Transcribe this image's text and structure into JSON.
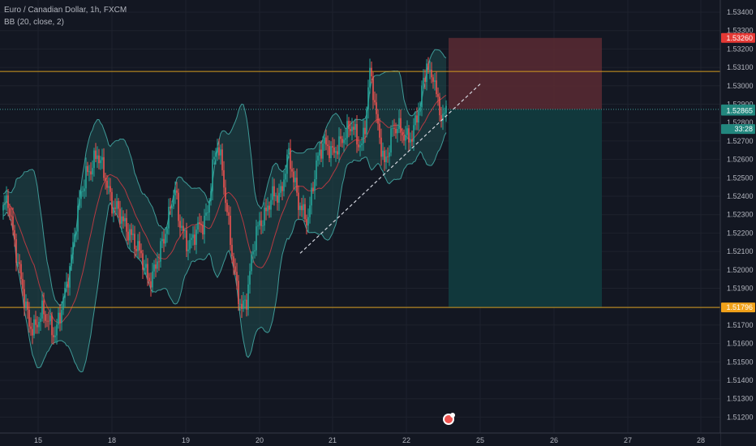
{
  "header": {
    "symbol_line": "Euro / Canadian Dollar, 1h, FXCM",
    "indicator_line": "BB (20, close, 2)"
  },
  "colors": {
    "background": "#131722",
    "grid": "#1e222d",
    "up": "#26a69a",
    "down": "#ef5350",
    "band": "#3e9a97",
    "band_fill": "#1f4c4e",
    "basis": "#b53a42",
    "level_line": "#d49b1f",
    "stop_zone": "#5a2a33",
    "target_zone": "#113a3e",
    "entry_line": "#3e9a97",
    "tag_red": "#e53935",
    "tag_teal": "#22877e",
    "tag_orange": "#f0a11a"
  },
  "chart_data": {
    "type": "candlestick",
    "title": "Euro / Canadian Dollar, 1h, FXCM",
    "indicator": "BB (20, close, 2)",
    "x_ticks": [
      "15",
      "18",
      "19",
      "20",
      "21",
      "22",
      "25",
      "26",
      "27",
      "28"
    ],
    "y_ticks": [
      "1.53400",
      "1.53300",
      "1.53200",
      "1.53100",
      "1.53000",
      "1.52900",
      "1.52800",
      "1.52700",
      "1.52600",
      "1.52500",
      "1.52400",
      "1.52300",
      "1.52200",
      "1.52100",
      "1.52000",
      "1.51900",
      "1.51800",
      "1.51700",
      "1.51600",
      "1.51500",
      "1.51400",
      "1.51300",
      "1.51200"
    ],
    "ylim": [
      1.5118,
      1.5348
    ],
    "grid": true,
    "price_tags": [
      {
        "label": "1.53260",
        "value": 1.5326,
        "color": "tag_red"
      },
      {
        "label": "1.52872",
        "value": 1.52872,
        "color": "tag_teal"
      },
      {
        "label": "1.52865",
        "value": 1.52865,
        "color": "tag_teal"
      },
      {
        "label": "33:28",
        "value": 1.52765,
        "color": "tag_teal"
      },
      {
        "label": "1.51796",
        "value": 1.51796,
        "color": "tag_orange"
      }
    ],
    "horizontal_levels": [
      1.53078,
      1.51796
    ],
    "position": {
      "entry": 1.52872,
      "stop": 1.5326,
      "target": 1.51796
    },
    "trendline": {
      "from": 1.5209,
      "to": 1.5301
    }
  }
}
